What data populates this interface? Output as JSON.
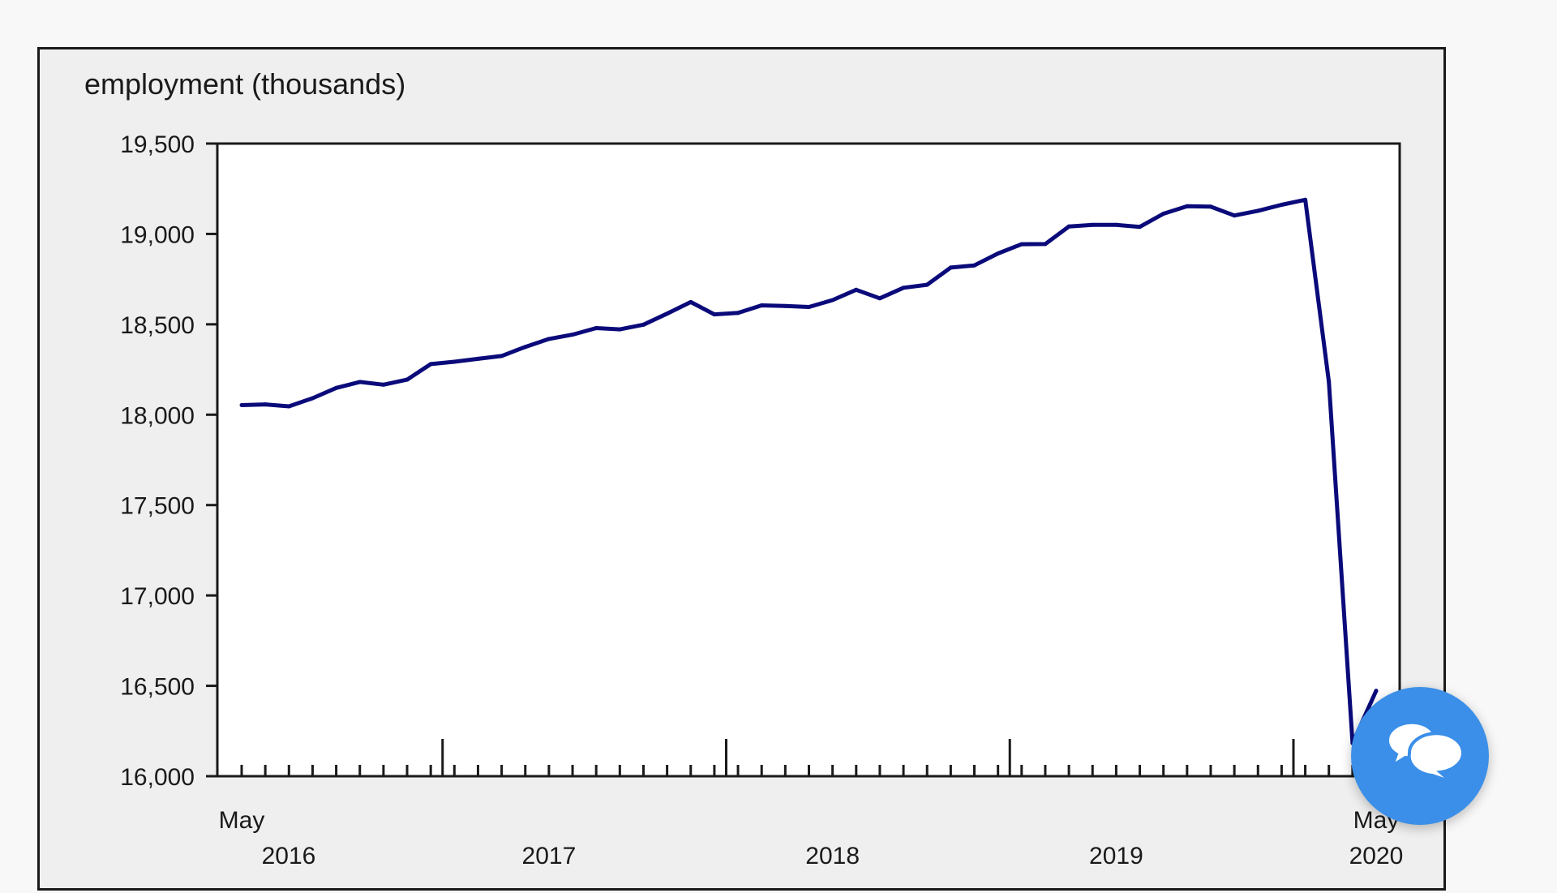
{
  "chart_data": {
    "type": "line",
    "ylabel": "employment (thousands)",
    "xlabel": "",
    "ylim": [
      16000,
      19500
    ],
    "yticks": [
      16000,
      16500,
      17000,
      17500,
      18000,
      18500,
      19000,
      19500
    ],
    "ytick_labels": [
      "16,000",
      "16,500",
      "17,000",
      "17,500",
      "18,000",
      "18,500",
      "19,000",
      "19,500"
    ],
    "x_start": "May 2016",
    "x_end": "May 2020",
    "x_tick_labels": [
      {
        "month_index": 0,
        "top": "May",
        "bottom": "2016"
      },
      {
        "month_index": 13,
        "top": "",
        "bottom": "2017"
      },
      {
        "month_index": 25,
        "top": "",
        "bottom": "2018"
      },
      {
        "month_index": 37,
        "top": "",
        "bottom": "2019"
      },
      {
        "month_index": 48,
        "top": "May",
        "bottom": "2020"
      }
    ],
    "year_marks": [
      8,
      20,
      32,
      44
    ],
    "grid": false,
    "series": [
      {
        "color": "#0a0a7a",
        "values": [
          18053,
          18057,
          18046,
          18091,
          18148,
          18181,
          18166,
          18194,
          18280,
          18293,
          18309,
          18325,
          18375,
          18419,
          18443,
          18479,
          18472,
          18498,
          18559,
          18623,
          18555,
          18563,
          18605,
          18601,
          18596,
          18634,
          18691,
          18644,
          18702,
          18719,
          18814,
          18826,
          18892,
          18943,
          18944,
          19041,
          19050,
          19050,
          19039,
          19112,
          19153,
          19151,
          19102,
          19128,
          19161,
          19189,
          18181,
          16183,
          16473
        ]
      }
    ]
  },
  "chat_widget": {
    "icon": "chat-bubbles-icon",
    "color": "#3b8fe8"
  }
}
